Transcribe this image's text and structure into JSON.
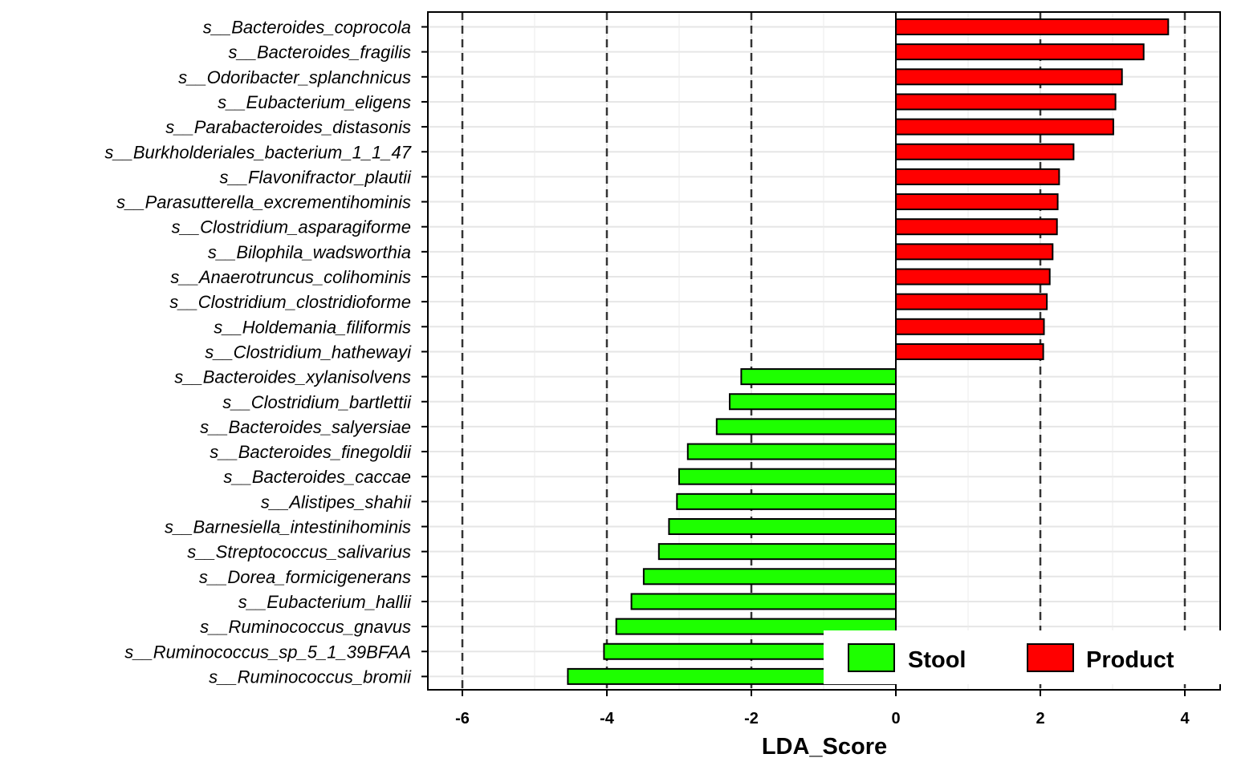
{
  "chart_data": {
    "type": "bar",
    "orientation": "horizontal",
    "xlabel": "LDA_Score",
    "xlim": [
      -6.5,
      4.5
    ],
    "x_ticks": [
      -6,
      -4,
      -2,
      0,
      2,
      4
    ],
    "x_tick_labels": [
      "-6",
      "-4",
      "-2",
      "0",
      "2",
      "4"
    ],
    "reference_lines": [
      -6,
      -4,
      -2,
      2,
      4
    ],
    "grid": true,
    "legend_position": "bottom-right",
    "groups": [
      {
        "name": "Stool",
        "color": "#1EFF00"
      },
      {
        "name": "Product",
        "color": "#FF0000"
      }
    ],
    "categories": [
      "s__Bacteroides_coprocola",
      "s__Bacteroides_fragilis",
      "s__Odoribacter_splanchnicus",
      "s__Eubacterium_eligens",
      "s__Parabacteroides_distasonis",
      "s__Burkholderiales_bacterium_1_1_47",
      "s__Flavonifractor_plautii",
      "s__Parasutterella_excrementihominis",
      "s__Clostridium_asparagiforme",
      "s__Bilophila_wadsworthia",
      "s__Anaerotruncus_colihominis",
      "s__Clostridium_clostridioforme",
      "s__Holdemania_filiformis",
      "s__Clostridium_hathewayi",
      "s__Bacteroides_xylanisolvens",
      "s__Clostridium_bartlettii",
      "s__Bacteroides_salyersiae",
      "s__Bacteroides_finegoldii",
      "s__Bacteroides_caccae",
      "s__Alistipes_shahii",
      "s__Barnesiella_intestinihominis",
      "s__Streptococcus_salivarius",
      "s__Dorea_formicigenerans",
      "s__Eubacterium_hallii",
      "s__Ruminococcus_gnavus",
      "s__Ruminococcus_sp_5_1_39BFAA",
      "s__Ruminococcus_bromii"
    ],
    "values": [
      3.77,
      3.43,
      3.13,
      3.04,
      3.01,
      2.46,
      2.26,
      2.24,
      2.23,
      2.17,
      2.13,
      2.09,
      2.05,
      2.04,
      -2.14,
      -2.3,
      -2.48,
      -2.88,
      -3.0,
      -3.03,
      -3.14,
      -3.28,
      -3.49,
      -3.66,
      -3.87,
      -4.04,
      -4.54
    ],
    "group_of_value": [
      "Product",
      "Product",
      "Product",
      "Product",
      "Product",
      "Product",
      "Product",
      "Product",
      "Product",
      "Product",
      "Product",
      "Product",
      "Product",
      "Product",
      "Stool",
      "Stool",
      "Stool",
      "Stool",
      "Stool",
      "Stool",
      "Stool",
      "Stool",
      "Stool",
      "Stool",
      "Stool",
      "Stool",
      "Stool"
    ]
  }
}
